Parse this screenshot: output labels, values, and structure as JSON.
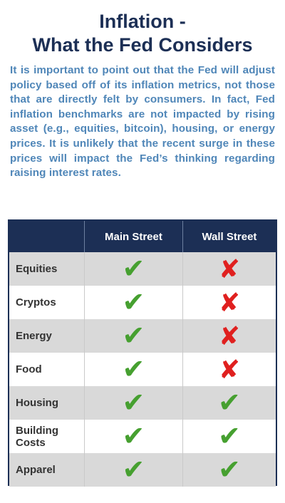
{
  "title": {
    "line1": "Inflation -",
    "line2": "What the Fed Considers"
  },
  "intro": "It is important to point out that the Fed will adjust policy based off of its inflation metrics, not those that are directly felt by consumers. In fact, Fed inflation benchmarks are not impacted by rising asset (e.g., equities, bitcoin), housing, or energy prices. It is unlikely that the recent surge in these prices will impact the Fed’s thinking regarding raising interest rates.",
  "table": {
    "headers": [
      "",
      "Main Street",
      "Wall Street"
    ],
    "rows": [
      {
        "label": "Equities",
        "main": "check",
        "wall": "cross"
      },
      {
        "label": "Cryptos",
        "main": "check",
        "wall": "cross"
      },
      {
        "label": "Energy",
        "main": "check",
        "wall": "cross"
      },
      {
        "label": "Food",
        "main": "check",
        "wall": "cross"
      },
      {
        "label": "Housing",
        "main": "check",
        "wall": "check"
      },
      {
        "label": "Building Costs",
        "main": "check",
        "wall": "check"
      },
      {
        "label": "Apparel",
        "main": "check",
        "wall": "check"
      }
    ]
  },
  "colors": {
    "navy": "#1c2f55",
    "intro_blue": "#4f86b8",
    "check": "#46a030",
    "cross": "#e0201f"
  }
}
